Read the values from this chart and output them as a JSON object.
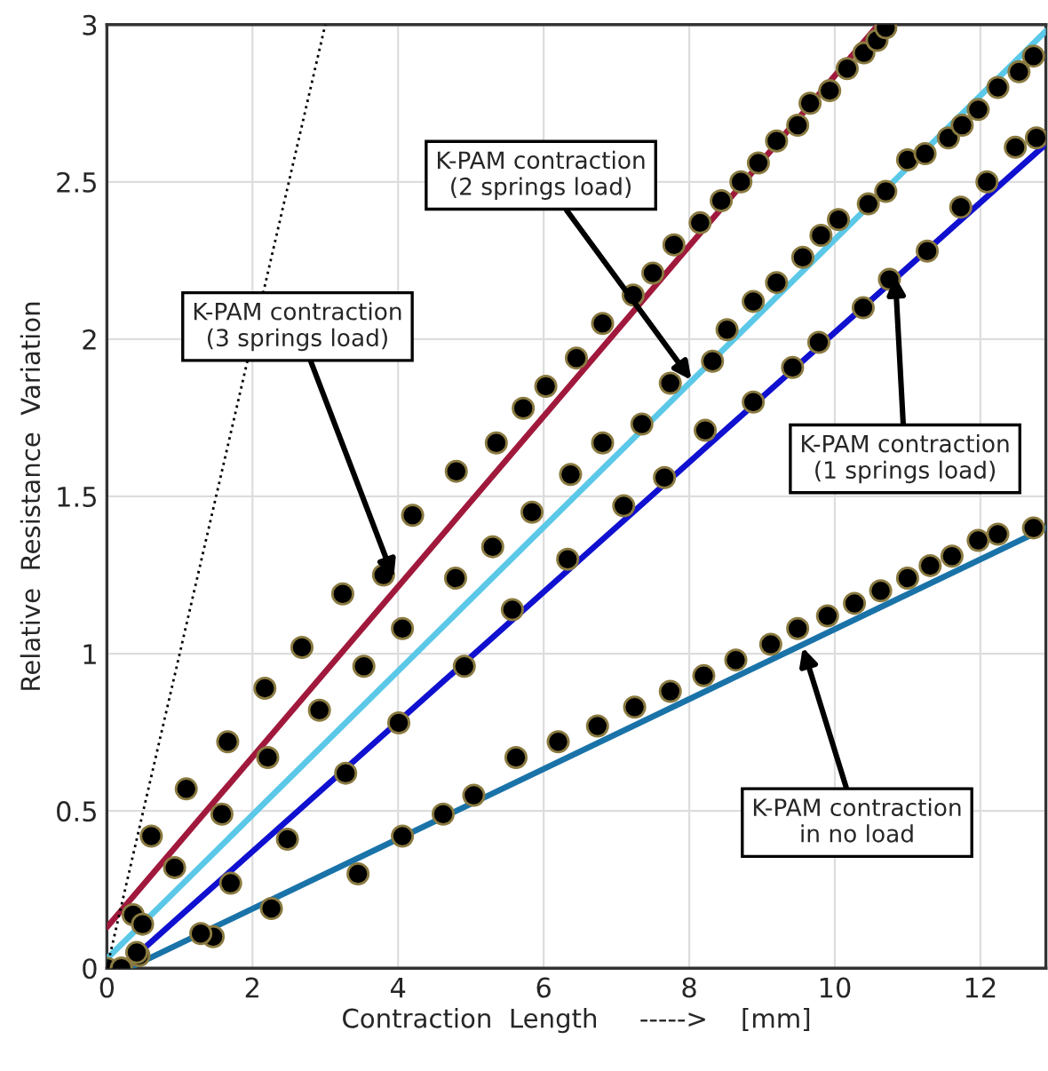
{
  "chart_data": {
    "type": "scatter",
    "xlabel": "Contraction  Length     ----->    [mm]",
    "ylabel": "Relative  Resistance  Variation",
    "xlim": [
      0,
      12.9
    ],
    "ylim": [
      0,
      3
    ],
    "xticks": [
      0,
      2,
      4,
      6,
      8,
      10,
      12
    ],
    "yticks": [
      0,
      0.5,
      1,
      1.5,
      2,
      2.5,
      3
    ],
    "grid": true,
    "series": [
      {
        "marker": "circle",
        "color": "#000000",
        "x": [
          0,
          0.36,
          0.61,
          1.09,
          1.66,
          2.17,
          2.68,
          3.24,
          3.8,
          4.2,
          4.8,
          5.35,
          5.72,
          6.03,
          6.45,
          6.81,
          7.23,
          7.5,
          7.79,
          8.15,
          8.44,
          8.71,
          8.95,
          9.2,
          9.49,
          9.66,
          9.93,
          10.17,
          10.4,
          10.58,
          10.7
        ],
        "values": [
          0,
          0.17,
          0.42,
          0.57,
          0.72,
          0.89,
          1.02,
          1.19,
          1.25,
          1.44,
          1.58,
          1.67,
          1.78,
          1.85,
          1.94,
          2.05,
          2.14,
          2.21,
          2.3,
          2.37,
          2.44,
          2.5,
          2.56,
          2.63,
          2.68,
          2.75,
          2.79,
          2.86,
          2.91,
          2.95,
          2.99
        ]
      },
      {
        "marker": "circle",
        "color": "#000000",
        "x": [
          0.2,
          0.44,
          0.49,
          0.93,
          1.58,
          2.21,
          2.92,
          3.53,
          4.06,
          4.79,
          5.3,
          5.84,
          6.37,
          6.81,
          7.35,
          7.74,
          8.32,
          8.52,
          8.88,
          9.2,
          9.56,
          9.81,
          10.05,
          10.46,
          10.7,
          11.0,
          11.24,
          11.56,
          11.75,
          11.97,
          12.24,
          12.53,
          12.73
        ],
        "values": [
          0,
          0.04,
          0.14,
          0.32,
          0.49,
          0.67,
          0.82,
          0.96,
          1.08,
          1.24,
          1.34,
          1.45,
          1.57,
          1.67,
          1.73,
          1.86,
          1.93,
          2.03,
          2.12,
          2.18,
          2.26,
          2.33,
          2.38,
          2.43,
          2.47,
          2.57,
          2.59,
          2.64,
          2.68,
          2.73,
          2.8,
          2.85,
          2.9
        ]
      },
      {
        "marker": "circle",
        "color": "#000000",
        "x": [
          1.46,
          1.7,
          2.48,
          3.28,
          4.01,
          4.91,
          5.57,
          6.33,
          7.1,
          7.66,
          8.22,
          8.88,
          9.42,
          9.78,
          10.39,
          10.75,
          11.27,
          11.73,
          12.09,
          12.48,
          12.77
        ],
        "values": [
          0.1,
          0.27,
          0.41,
          0.62,
          0.78,
          0.96,
          1.14,
          1.3,
          1.47,
          1.56,
          1.71,
          1.8,
          1.91,
          1.99,
          2.1,
          2.19,
          2.28,
          2.42,
          2.5,
          2.61,
          2.64
        ]
      },
      {
        "marker": "circle",
        "color": "#000000",
        "x": [
          0.2,
          0.41,
          1.29,
          2.26,
          3.45,
          4.06,
          4.62,
          5.04,
          5.62,
          6.2,
          6.74,
          7.25,
          7.74,
          8.2,
          8.64,
          9.12,
          9.49,
          9.9,
          10.27,
          10.63,
          11.0,
          11.31,
          11.61,
          11.97,
          12.24,
          12.73
        ],
        "values": [
          0,
          0.05,
          0.11,
          0.19,
          0.3,
          0.42,
          0.49,
          0.55,
          0.67,
          0.72,
          0.77,
          0.83,
          0.88,
          0.93,
          0.98,
          1.03,
          1.08,
          1.12,
          1.16,
          1.2,
          1.24,
          1.28,
          1.31,
          1.36,
          1.38,
          1.4
        ]
      },
      {
        "type": "line",
        "color": "#a0193c",
        "line_style": "solid",
        "x": [
          0,
          10.6
        ],
        "values": [
          0.13,
          3.0
        ]
      },
      {
        "type": "line",
        "color": "#5bc8e8",
        "line_style": "solid",
        "x": [
          0,
          12.9
        ],
        "values": [
          0.03,
          2.98
        ]
      },
      {
        "type": "line",
        "color": "#1010d0",
        "line_style": "solid",
        "x": [
          0.3,
          12.9
        ],
        "values": [
          0.02,
          2.62
        ]
      },
      {
        "type": "line",
        "color": "#1a73a8",
        "line_style": "solid",
        "x": [
          0.3,
          12.9
        ],
        "values": [
          0,
          1.4
        ]
      },
      {
        "type": "line",
        "color": "#000000",
        "line_style": "dotted",
        "x": [
          0,
          3.0
        ],
        "values": [
          0,
          3.0
        ]
      }
    ],
    "annotations": [
      {
        "text": "K-PAM contraction\n(3 springs load)",
        "x": 3.94,
        "y": 1.24
      },
      {
        "text": "K-PAM contraction\n(2 springs load)",
        "x": 8.03,
        "y": 1.87
      },
      {
        "text": "K-PAM contraction\n(1 springs load)",
        "x": 10.83,
        "y": 2.2
      },
      {
        "text": "K-PAM contraction\nin no load",
        "x": 9.56,
        "y": 1.02
      }
    ]
  }
}
